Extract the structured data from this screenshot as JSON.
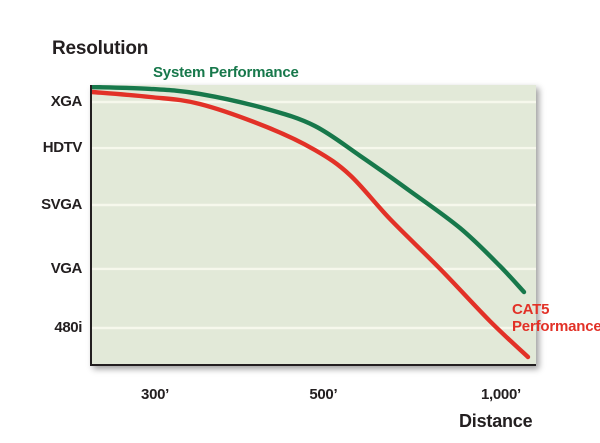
{
  "chart_data": {
    "type": "line",
    "title": "",
    "xlabel": "Distance",
    "ylabel": "Resolution",
    "grid": "horizontal",
    "legend_position": "inline-curve-labels",
    "colors": {
      "plot_bg": "#e2e9d8",
      "grid": "#f6f8ec",
      "axis": "#231f20",
      "text": "#231f20"
    },
    "x_ticks": [
      {
        "label": "300’",
        "pos": 0.142
      },
      {
        "label": "500’",
        "pos": 0.521
      },
      {
        "label": "1,000’",
        "pos": 0.921
      }
    ],
    "y_ticks": [
      {
        "label": "XGA",
        "pos": 0.061
      },
      {
        "label": "HDTV",
        "pos": 0.226
      },
      {
        "label": "SVGA",
        "pos": 0.43
      },
      {
        "label": "VGA",
        "pos": 0.659
      },
      {
        "label": "480i",
        "pos": 0.871
      }
    ],
    "series": [
      {
        "name": "System Performance",
        "color": "#17784b",
        "label_lines": [
          "System Performance"
        ],
        "points": [
          [
            0.0,
            0.007
          ],
          [
            0.131,
            0.014
          ],
          [
            0.243,
            0.032
          ],
          [
            0.394,
            0.086
          ],
          [
            0.502,
            0.147
          ],
          [
            0.604,
            0.254
          ],
          [
            0.716,
            0.38
          ],
          [
            0.829,
            0.513
          ],
          [
            0.919,
            0.649
          ],
          [
            0.973,
            0.742
          ]
        ]
      },
      {
        "name": "CAT5 Performance",
        "color": "#e23127",
        "label_lines": [
          "CAT5",
          "Performance"
        ],
        "points": [
          [
            0.0,
            0.025
          ],
          [
            0.131,
            0.043
          ],
          [
            0.243,
            0.068
          ],
          [
            0.394,
            0.151
          ],
          [
            0.502,
            0.233
          ],
          [
            0.581,
            0.323
          ],
          [
            0.671,
            0.48
          ],
          [
            0.784,
            0.659
          ],
          [
            0.896,
            0.846
          ],
          [
            0.982,
            0.975
          ]
        ]
      }
    ]
  }
}
